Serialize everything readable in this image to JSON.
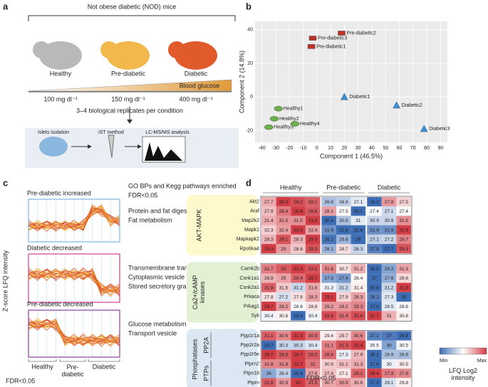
{
  "panel_a": {
    "letter": "a",
    "cohort": "Not obese diabetic (NOD) mice",
    "mice": [
      "Healthy",
      "Pre-diabetic",
      "Diabetic"
    ],
    "gradient_label": "Blood glucose",
    "glucose_levels": [
      "100 mg dl⁻¹",
      "150 mg dl⁻¹",
      "400 mg dl⁻¹"
    ],
    "replicates": "3–4 biological replicates per condition",
    "workflow": [
      "Islets isolation",
      "iST method",
      "LC-MS/MS analysis"
    ]
  },
  "chart_data": {
    "letter": "b",
    "type": "scatter",
    "xlabel": "Component 1 (46.5%)",
    "ylabel": "Component 2 (14.8%)",
    "xlim": [
      -45,
      95
    ],
    "ylim": [
      -27,
      45
    ],
    "xticks": [
      -40,
      -30,
      -20,
      -10,
      0,
      10,
      20,
      30,
      40,
      50,
      60,
      70,
      80,
      90
    ],
    "yticks": [
      -20,
      0,
      20,
      40
    ],
    "grid": true,
    "series": [
      {
        "marker": "ellipse",
        "color": "#6ab04c",
        "labels": [
          "Healthy1",
          "Healthy2",
          "Healthy3",
          "Healthy4"
        ],
        "x": [
          -28,
          -31,
          -35,
          -16
        ],
        "y": [
          -7,
          -13,
          -18,
          -16
        ]
      },
      {
        "marker": "square",
        "color": "#b8322a",
        "labels": [
          "Pre-diabetic2",
          "Pre-diabetic3",
          "Pre-diabetic1"
        ],
        "x": [
          18,
          -3,
          -4
        ],
        "y": [
          38,
          35,
          30
        ]
      },
      {
        "marker": "triangle",
        "color": "#3b8fd9",
        "labels": [
          "Diabetic1",
          "Diabetic2",
          "Diabetic3"
        ],
        "x": [
          20,
          58,
          78
        ],
        "y": [
          0,
          -5,
          -19
        ]
      }
    ]
  },
  "panel_c": {
    "letter": "c",
    "ylabel": "Z-score LFQ intensity",
    "xlabels": [
      "Healthy",
      "Pre-\ndiabetic",
      "Diabetic"
    ],
    "footnote": "FDR<0.05",
    "header": [
      "GO BPs and Kegg pathways enriched",
      "FDR<0.05"
    ],
    "clusters": [
      {
        "title": "Pre-diabetic increased",
        "terms": [
          "Protein and fat digestion/absorption",
          "Fat metabolism"
        ]
      },
      {
        "title": "Diabetic decreased",
        "terms": [
          "Transmembrane transporter activity",
          "Cytoplasmic vesicle",
          "Stored secretory granule"
        ]
      },
      {
        "title": "Pre-diabetic decreased",
        "terms": [
          "Glucose metabolism",
          "Transport vesicle"
        ]
      }
    ]
  },
  "panel_d": {
    "letter": "d",
    "groups": [
      "Healthy",
      "Pre-diabetic",
      "Diabetic"
    ],
    "footnote": "FDR<0.05",
    "legend": {
      "min": "Min",
      "max": "Max",
      "title": "LFQ Log2\nintensity"
    },
    "sections": [
      {
        "label": "AKT-MAPK",
        "subgroups": [
          {
            "rows": [
              {
                "gene": "Akt2",
                "values": [
                  27.7,
                  28.3,
                  28.2,
                  28.1,
                  26.8,
                  26.9,
                  27.1,
                  26.2,
                  27.8,
                  27.5
                ]
              },
              {
                "gene": "Araf",
                "values": [
                  27.9,
                  28.4,
                  28.8,
                  28.6,
                  28.1,
                  27.5,
                  26.1,
                  27.4,
                  27.1,
                  27.4
                ]
              },
              {
                "gene": "Map2k2",
                "values": [
                  31.4,
                  31.5,
                  31.5,
                  31.8,
                  30.4,
                  30.8,
                  31,
                  30.9,
                  30.9,
                  31.5
                ]
              },
              {
                "gene": "Mapk1",
                "values": [
                  32.3,
                  32.4,
                  32.6,
                  32.4,
                  31.9,
                  31.8,
                  31.8,
                  31.9,
                  31.9,
                  32.6
                ]
              },
              {
                "gene": "Mapkapk2",
                "values": [
                  28.3,
                  29.1,
                  28.3,
                  29.3,
                  26.1,
                  26.8,
                  26,
                  27.1,
                  27.2,
                  28.7
                ]
              },
              {
                "gene": "Rps6ka4",
                "values": [
                  29.4,
                  29,
                  28.8,
                  29.3,
                  28.1,
                  28.7,
                  28.3,
                  27.8,
                  27.7,
                  29.3
                ]
              }
            ]
          }
        ]
      },
      {
        "label": "Ca2+/cAMP\nkinases",
        "subgroups": [
          {
            "rows": [
              {
                "gene": "Camk2b",
                "values": [
                  31.7,
                  32,
                  32.3,
                  32.1,
                  31.6,
                  30.7,
                  31.2,
                  28.5,
                  29.2,
                  31.3
                ]
              },
              {
                "gene": "Csnk1a1",
                "values": [
                  28.9,
                  29,
                  29.4,
                  29.7,
                  27.5,
                  27.4,
                  28.4,
                  27,
                  27.6,
                  28.6
                ]
              },
              {
                "gene": "Csnk2a1",
                "values": [
                  31.8,
                  31.5,
                  31.2,
                  31.6,
                  31.3,
                  31.2,
                  31.4,
                  30.8,
                  31.2,
                  31.9
                ]
              },
              {
                "gene": "Prkaca",
                "values": [
                  27.8,
                  27.2,
                  27.8,
                  28.3,
                  29.1,
                  27.9,
                  28.3,
                  26.2,
                  27.3,
                  26
                ]
              },
              {
                "gene": "Prkag1",
                "values": [
                  29.7,
                  29.2,
                  28.6,
                  28.8,
                  29.2,
                  29.2,
                  29.3,
                  27.6,
                  28.5,
                  28.6
                ]
              },
              {
                "gene": "Syk",
                "values": [
                  30.4,
                  30.6,
                  29.3,
                  30.4,
                  31.6,
                  31.4,
                  31.6,
                  31.7,
                  31,
                  30.6
                ]
              }
            ]
          }
        ]
      },
      {
        "label": "Phosphatases",
        "subgroups": [
          {
            "label": "PP2A",
            "rows": [
              {
                "gene": "Ppp1r1a",
                "values": [
                  31.1,
                  30.6,
                  31.5,
                  30.9,
                  29.4,
                  29.7,
                  30.6,
                  27.1,
                  27,
                  26.8
                ]
              },
              {
                "gene": "Ppp2r2a",
                "values": [
                  29.7,
                  30.3,
                  30.3,
                  30.4,
                  31.1,
                  31.3,
                  31.4,
                  30.5,
                  30,
                  30.5
                ]
              },
              {
                "gene": "Ppp2r5e",
                "values": [
                  28.7,
                  28.5,
                  28.7,
                  28.5,
                  28.4,
                  27.3,
                  27.9,
                  26.2,
                  26.9,
                  26.9
                ]
              }
            ]
          },
          {
            "label": "PTPs",
            "rows": [
              {
                "gene": "Ptprn2",
                "values": [
                  31.8,
                  31.8,
                  32.7,
                  32,
                  30.9,
                  31.1,
                  31.3,
                  27.8,
                  30,
                  30.5
                ]
              },
              {
                "gene": "Ptpn18",
                "values": [
                  26,
                  26.4,
                  25.4,
                  27.6,
                  27.4,
                  27.1,
                  28.1,
                  28.4,
                  27.9,
                  27.8
                ]
              },
              {
                "gene": "Ptprn",
                "values": [
                  31.6,
                  30.9,
                  32,
                  31.5,
                  30.7,
                  30.9,
                  30.6,
                  27.2,
                  29.1,
                  29.8
                ]
              }
            ]
          }
        ]
      }
    ]
  }
}
